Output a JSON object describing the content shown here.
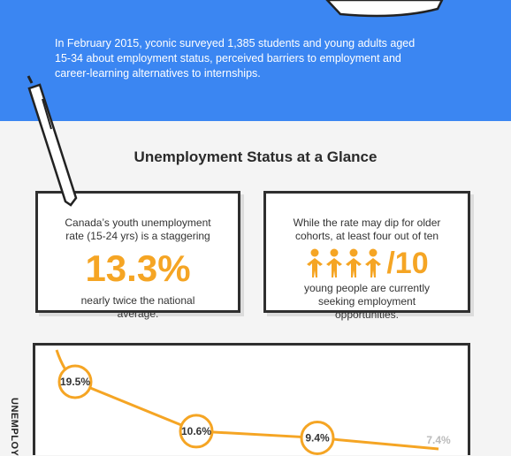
{
  "intro": "In February 2015, yconic surveyed 1,385 students and young adults aged 15-34 about employment status, perceived barriers to employment and career-learning alternatives to internships.",
  "heading": "Unemployment Status at a Glance",
  "cards": [
    {
      "text_top": "Canada’s youth unemployment rate (15-24 yrs) is a staggering",
      "big": "13.3%",
      "text_bottom": "nearly twice the national average."
    },
    {
      "text_top": "While the rate may dip for older cohorts, at least four out of ten",
      "people_count": 4,
      "people_total": "/10",
      "text_bottom": "young people are currently seeking employment opportunities.",
      "color": "#f5a524"
    }
  ],
  "chart": {
    "type": "line",
    "ylabel": "UNEMPLOY",
    "values": [
      19.5,
      10.6,
      9.4,
      7.4
    ],
    "value_labels": [
      "19.5%",
      "10.6%",
      "9.4%",
      "7.4%"
    ],
    "color": "#f5a524",
    "marker_colors": [
      "#f5a524",
      "#f5a524",
      "#f5a524",
      "#dddddd"
    ]
  }
}
